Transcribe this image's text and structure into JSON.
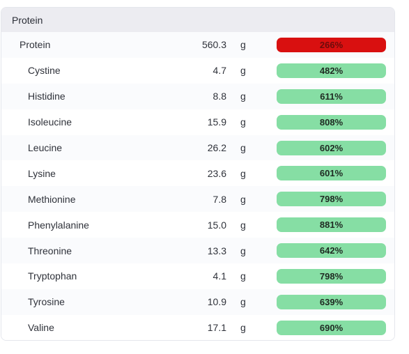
{
  "section": {
    "title": "Protein"
  },
  "colors": {
    "ok_bar": "#86dea4",
    "over_bar": "#d91010"
  },
  "rows": [
    {
      "name": "Protein",
      "amount": "560.3",
      "unit": "g",
      "percent": "266%",
      "status": "over",
      "level": "parent"
    },
    {
      "name": "Cystine",
      "amount": "4.7",
      "unit": "g",
      "percent": "482%",
      "status": "ok",
      "level": "child"
    },
    {
      "name": "Histidine",
      "amount": "8.8",
      "unit": "g",
      "percent": "611%",
      "status": "ok",
      "level": "child"
    },
    {
      "name": "Isoleucine",
      "amount": "15.9",
      "unit": "g",
      "percent": "808%",
      "status": "ok",
      "level": "child"
    },
    {
      "name": "Leucine",
      "amount": "26.2",
      "unit": "g",
      "percent": "602%",
      "status": "ok",
      "level": "child"
    },
    {
      "name": "Lysine",
      "amount": "23.6",
      "unit": "g",
      "percent": "601%",
      "status": "ok",
      "level": "child"
    },
    {
      "name": "Methionine",
      "amount": "7.8",
      "unit": "g",
      "percent": "798%",
      "status": "ok",
      "level": "child"
    },
    {
      "name": "Phenylalanine",
      "amount": "15.0",
      "unit": "g",
      "percent": "881%",
      "status": "ok",
      "level": "child"
    },
    {
      "name": "Threonine",
      "amount": "13.3",
      "unit": "g",
      "percent": "642%",
      "status": "ok",
      "level": "child"
    },
    {
      "name": "Tryptophan",
      "amount": "4.1",
      "unit": "g",
      "percent": "798%",
      "status": "ok",
      "level": "child"
    },
    {
      "name": "Tyrosine",
      "amount": "10.9",
      "unit": "g",
      "percent": "639%",
      "status": "ok",
      "level": "child"
    },
    {
      "name": "Valine",
      "amount": "17.1",
      "unit": "g",
      "percent": "690%",
      "status": "ok",
      "level": "child"
    }
  ]
}
